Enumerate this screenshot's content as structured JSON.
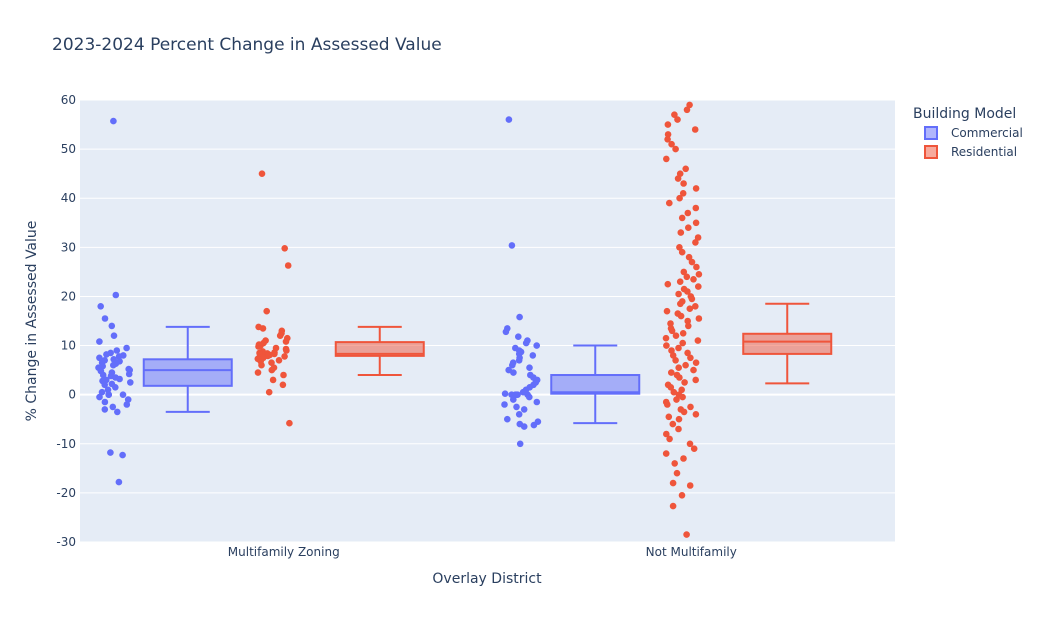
{
  "chart_data": {
    "type": "box",
    "title": "2023-2024 Percent Change in Assessed Value",
    "xlabel": "Overlay District",
    "ylabel": "% Change in Assessed Value",
    "ylim": [
      -30,
      60
    ],
    "yticks": [
      -30,
      -20,
      -10,
      0,
      10,
      20,
      30,
      40,
      50,
      60
    ],
    "categories": [
      "Multifamily Zoning",
      "Not Multifamily"
    ],
    "grid": true,
    "boxpoints": "all",
    "legend": {
      "title": "Building Model",
      "position": "top-right"
    },
    "series": [
      {
        "name": "Commercial",
        "color": "#636efa",
        "boxes": [
          {
            "category": "Multifamily Zoning",
            "min": -3.5,
            "q1": 1.8,
            "median": 5.0,
            "q3": 7.2,
            "max": 13.8
          },
          {
            "category": "Not Multifamily",
            "min": -5.8,
            "q1": 0.2,
            "median": 0.5,
            "q3": 4.0,
            "max": 10.0
          }
        ],
        "points": [
          [
            55.7,
            20.3,
            18.0,
            15.5,
            14.0,
            12.0,
            10.8,
            9.5,
            9.0,
            8.5,
            8.2,
            8.0,
            7.8,
            7.5,
            7.2,
            7.0,
            6.8,
            6.5,
            6.3,
            6.0,
            5.8,
            5.5,
            5.2,
            5.0,
            4.8,
            4.5,
            4.2,
            4.0,
            3.8,
            3.5,
            3.2,
            3.0,
            2.8,
            2.5,
            2.2,
            2.0,
            1.5,
            1.0,
            0.5,
            0.0,
            0.0,
            0.0,
            -0.5,
            -1.0,
            -1.5,
            -2.0,
            -2.5,
            -3.0,
            -3.5,
            -11.8,
            -12.3,
            -17.8
          ],
          [
            56.0,
            30.4,
            15.8,
            13.5,
            12.8,
            11.8,
            11.0,
            10.5,
            10.0,
            9.5,
            9.0,
            8.7,
            8.3,
            8.0,
            7.5,
            7.0,
            6.5,
            6.0,
            5.5,
            5.0,
            4.5,
            4.0,
            3.5,
            3.0,
            2.5,
            2.0,
            1.5,
            1.0,
            0.5,
            0.2,
            0.0,
            0.0,
            0.0,
            0.0,
            0.0,
            -0.5,
            -1.0,
            -1.5,
            -2.0,
            -2.5,
            -3.0,
            -4.0,
            -5.0,
            -5.5,
            -6.0,
            -6.2,
            -6.5,
            -10.0
          ]
        ]
      },
      {
        "name": "Residential",
        "color": "#ef553b",
        "boxes": [
          {
            "category": "Multifamily Zoning",
            "min": 4.0,
            "q1": 7.9,
            "median": 8.3,
            "q3": 10.7,
            "max": 13.8
          },
          {
            "category": "Not Multifamily",
            "min": 2.3,
            "q1": 8.3,
            "median": 10.8,
            "q3": 12.4,
            "max": 18.5
          }
        ],
        "points": [
          [
            45.0,
            29.8,
            26.3,
            17.0,
            13.8,
            13.5,
            13.0,
            12.5,
            12.0,
            11.5,
            11.0,
            10.8,
            10.5,
            10.2,
            10.0,
            9.8,
            9.5,
            9.3,
            9.0,
            8.8,
            8.6,
            8.5,
            8.4,
            8.3,
            8.2,
            8.1,
            8.0,
            7.9,
            7.8,
            7.7,
            7.5,
            7.3,
            7.0,
            6.8,
            6.5,
            6.0,
            5.5,
            5.0,
            4.5,
            4.0,
            3.0,
            2.0,
            0.5,
            -5.8
          ],
          [
            59.0,
            58.0,
            57.0,
            56.0,
            55.0,
            54.0,
            53.0,
            52.0,
            51.0,
            50.0,
            48.0,
            46.0,
            45.0,
            44.0,
            43.0,
            42.0,
            41.0,
            40.0,
            39.0,
            38.0,
            37.0,
            36.0,
            35.0,
            34.0,
            33.0,
            32.0,
            31.0,
            30.0,
            29.0,
            28.0,
            27.0,
            26.0,
            25.0,
            24.5,
            24.0,
            23.5,
            23.0,
            22.5,
            22.0,
            21.5,
            21.0,
            20.5,
            20.0,
            19.5,
            19.0,
            18.5,
            18.0,
            17.5,
            17.0,
            16.5,
            16.0,
            15.5,
            15.0,
            14.5,
            14.0,
            13.5,
            13.0,
            12.5,
            12.0,
            11.5,
            11.0,
            10.5,
            10.0,
            9.5,
            9.0,
            8.5,
            8.0,
            7.5,
            7.0,
            6.5,
            6.0,
            5.5,
            5.0,
            4.5,
            4.0,
            3.5,
            3.0,
            2.5,
            2.0,
            1.5,
            1.0,
            0.5,
            0.0,
            -0.5,
            -1.0,
            -1.5,
            -2.0,
            -2.5,
            -3.0,
            -3.5,
            -4.0,
            -4.5,
            -5.0,
            -6.0,
            -7.0,
            -8.0,
            -9.0,
            -10.0,
            -11.0,
            -12.0,
            -13.0,
            -14.0,
            -16.0,
            -18.0,
            -18.5,
            -20.5,
            -22.7,
            -28.5
          ]
        ]
      }
    ]
  }
}
